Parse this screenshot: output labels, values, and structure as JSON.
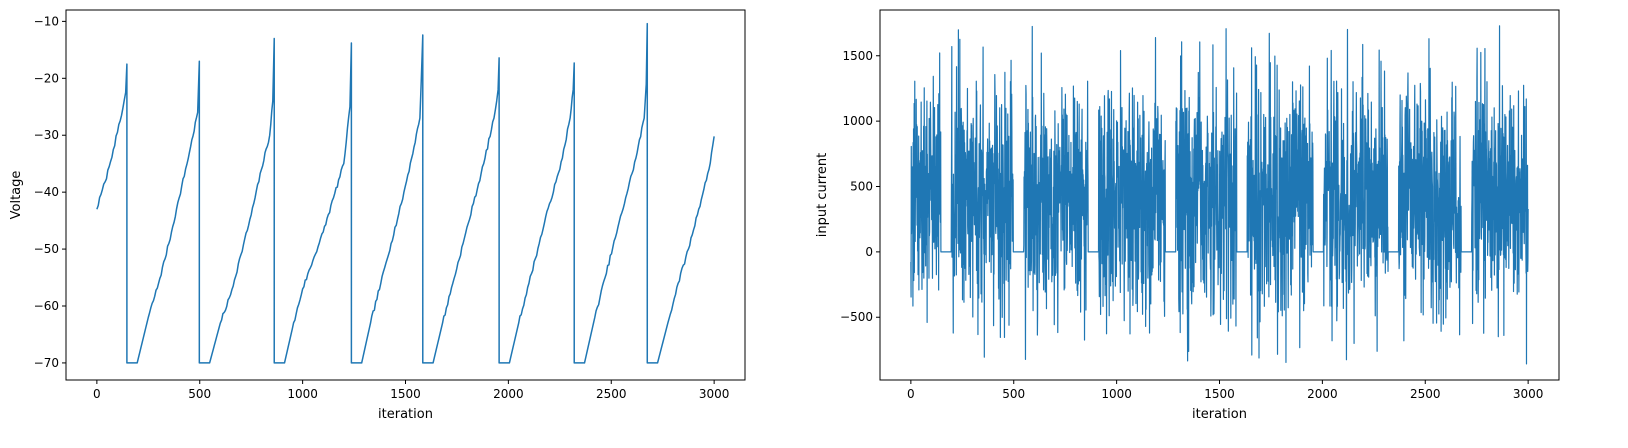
{
  "chart_data": [
    {
      "type": "line",
      "xlabel": "iteration",
      "ylabel": "Voltage",
      "xlim": [
        -150,
        3150
      ],
      "ylim": [
        -73,
        -8
      ],
      "xticks": [
        0,
        500,
        1000,
        1500,
        2000,
        2500,
        3000
      ],
      "yticks": [
        -70,
        -60,
        -50,
        -40,
        -30,
        -20,
        -10
      ],
      "color": "#1f77b4",
      "grid": false,
      "reset_voltage": -70,
      "spikes": [
        {
          "x": 146,
          "peak": -17.5
        },
        {
          "x": 498,
          "peak": -17
        },
        {
          "x": 862,
          "peak": -13
        },
        {
          "x": 1237,
          "peak": -13.8
        },
        {
          "x": 1584,
          "peak": -12.4
        },
        {
          "x": 1955,
          "peak": -16.4
        },
        {
          "x": 2320,
          "peak": -17.3
        },
        {
          "x": 2675,
          "peak": -10.4
        }
      ],
      "start": {
        "x": 0,
        "y": -43
      },
      "end": {
        "x": 3000,
        "y": -30.2
      },
      "refractory_length": 50,
      "series_points": [
        [
          0,
          -43
        ],
        [
          20,
          -40.4
        ],
        [
          40,
          -38.2
        ],
        [
          60,
          -35.5
        ],
        [
          80,
          -32.5
        ],
        [
          100,
          -29.5
        ],
        [
          120,
          -26.5
        ],
        [
          140,
          -22.5
        ],
        [
          146,
          -17.5
        ],
        [
          146,
          -70
        ],
        [
          196,
          -70
        ],
        [
          250,
          -62
        ],
        [
          300,
          -56
        ],
        [
          350,
          -49
        ],
        [
          400,
          -41
        ],
        [
          450,
          -33
        ],
        [
          490,
          -26
        ],
        [
          498,
          -17
        ],
        [
          498,
          -70
        ],
        [
          548,
          -70
        ],
        [
          600,
          -63
        ],
        [
          650,
          -58
        ],
        [
          700,
          -51
        ],
        [
          750,
          -44
        ],
        [
          800,
          -36
        ],
        [
          840,
          -30
        ],
        [
          855,
          -24
        ],
        [
          862,
          -13
        ],
        [
          862,
          -70
        ],
        [
          912,
          -70
        ],
        [
          950,
          -64
        ],
        [
          1000,
          -57
        ],
        [
          1050,
          -52
        ],
        [
          1100,
          -47
        ],
        [
          1150,
          -41
        ],
        [
          1200,
          -35
        ],
        [
          1230,
          -25
        ],
        [
          1237,
          -13.8
        ],
        [
          1237,
          -70
        ],
        [
          1287,
          -70
        ],
        [
          1330,
          -63
        ],
        [
          1380,
          -56
        ],
        [
          1430,
          -49
        ],
        [
          1480,
          -42
        ],
        [
          1530,
          -34
        ],
        [
          1570,
          -27
        ],
        [
          1584,
          -12.4
        ],
        [
          1584,
          -70
        ],
        [
          1634,
          -70
        ],
        [
          1680,
          -63
        ],
        [
          1730,
          -56
        ],
        [
          1780,
          -49
        ],
        [
          1830,
          -42
        ],
        [
          1880,
          -35
        ],
        [
          1930,
          -27
        ],
        [
          1950,
          -22
        ],
        [
          1955,
          -16.4
        ],
        [
          1955,
          -70
        ],
        [
          2005,
          -70
        ],
        [
          2050,
          -63
        ],
        [
          2100,
          -56
        ],
        [
          2150,
          -49
        ],
        [
          2200,
          -42
        ],
        [
          2250,
          -36
        ],
        [
          2300,
          -27
        ],
        [
          2315,
          -22
        ],
        [
          2320,
          -17.3
        ],
        [
          2320,
          -70
        ],
        [
          2370,
          -70
        ],
        [
          2420,
          -62
        ],
        [
          2470,
          -55
        ],
        [
          2520,
          -48
        ],
        [
          2570,
          -41
        ],
        [
          2620,
          -34
        ],
        [
          2660,
          -27
        ],
        [
          2670,
          -21
        ],
        [
          2675,
          -10.4
        ],
        [
          2675,
          -70
        ],
        [
          2725,
          -70
        ],
        [
          2775,
          -63
        ],
        [
          2825,
          -56
        ],
        [
          2875,
          -50
        ],
        [
          2925,
          -43
        ],
        [
          2975,
          -36
        ],
        [
          3000,
          -30.2
        ]
      ]
    },
    {
      "type": "line",
      "xlabel": "iteration",
      "ylabel": "input current",
      "xlim": [
        -150,
        3150
      ],
      "ylim": [
        -980,
        1850
      ],
      "xticks": [
        0,
        500,
        1000,
        1500,
        2000,
        2500,
        3000
      ],
      "yticks": [
        -500,
        0,
        500,
        1000,
        1500
      ],
      "color": "#1f77b4",
      "grid": false,
      "zero_segments": [
        [
          146,
          196
        ],
        [
          498,
          548
        ],
        [
          862,
          912
        ],
        [
          1237,
          1287
        ],
        [
          1584,
          1634
        ],
        [
          1955,
          2005
        ],
        [
          2320,
          2370
        ],
        [
          2675,
          2725
        ]
      ],
      "noise_min": -870,
      "noise_max": 1730,
      "noise_mean": 400
    }
  ]
}
